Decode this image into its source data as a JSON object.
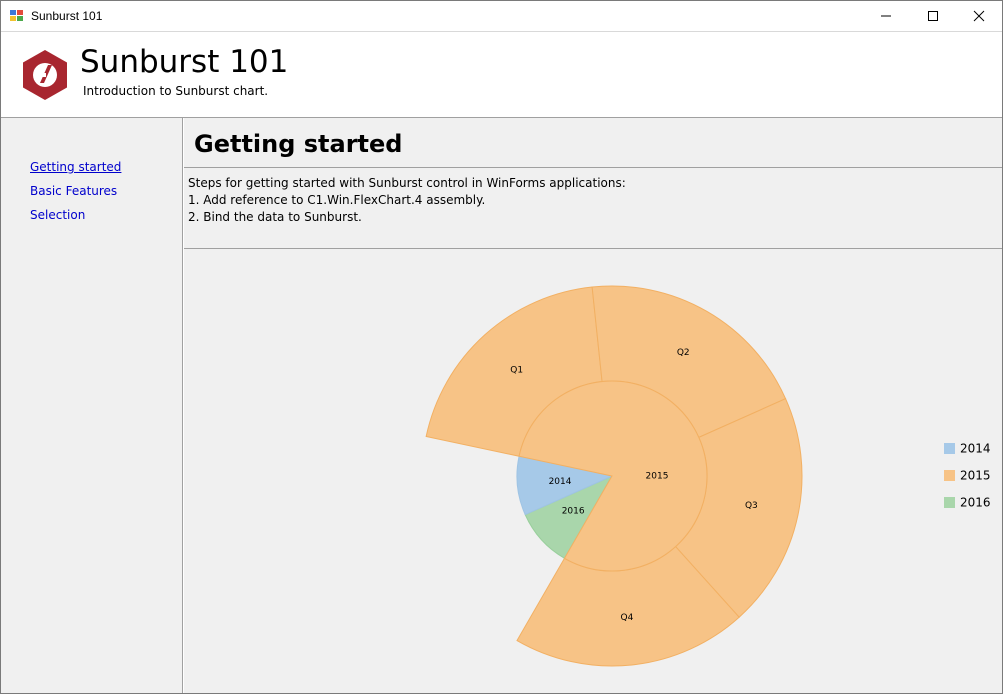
{
  "window": {
    "title": "Sunburst 101"
  },
  "header": {
    "title": "Sunburst 101",
    "subtitle": "Introduction to Sunburst chart."
  },
  "sidebar": {
    "items": [
      {
        "label": "Getting started",
        "active": true
      },
      {
        "label": "Basic Features",
        "active": false
      },
      {
        "label": "Selection",
        "active": false
      }
    ]
  },
  "main": {
    "page_title": "Getting started",
    "description": [
      "Steps for getting started with Sunburst control in WinForms applications:",
      "1. Add reference to C1.Win.FlexChart.4 assembly.",
      "2. Bind the data to Sunburst."
    ]
  },
  "colors": {
    "y2014": "#a6c9e8",
    "y2015": "#f7c386",
    "y2016": "#a9d6ab",
    "stroke2014": "#9fc4e4",
    "stroke2015": "#f2b063",
    "stroke2016": "#99cf9c",
    "logo": "#a8262f",
    "link": "#0000cc"
  },
  "chart_data": {
    "type": "sunburst",
    "rings": [
      {
        "level": 1,
        "slices": [
          {
            "label": "2014",
            "value": 1
          },
          {
            "label": "2015",
            "value": 8
          },
          {
            "label": "2016",
            "value": 1
          }
        ]
      },
      {
        "level": 2,
        "parent": "2015",
        "slices": [
          {
            "label": "Q1",
            "value": 2
          },
          {
            "label": "Q2",
            "value": 2
          },
          {
            "label": "Q3",
            "value": 2
          },
          {
            "label": "Q4",
            "value": 2
          }
        ]
      }
    ],
    "legend": [
      "2014",
      "2015",
      "2016"
    ],
    "legend_position": "right"
  }
}
